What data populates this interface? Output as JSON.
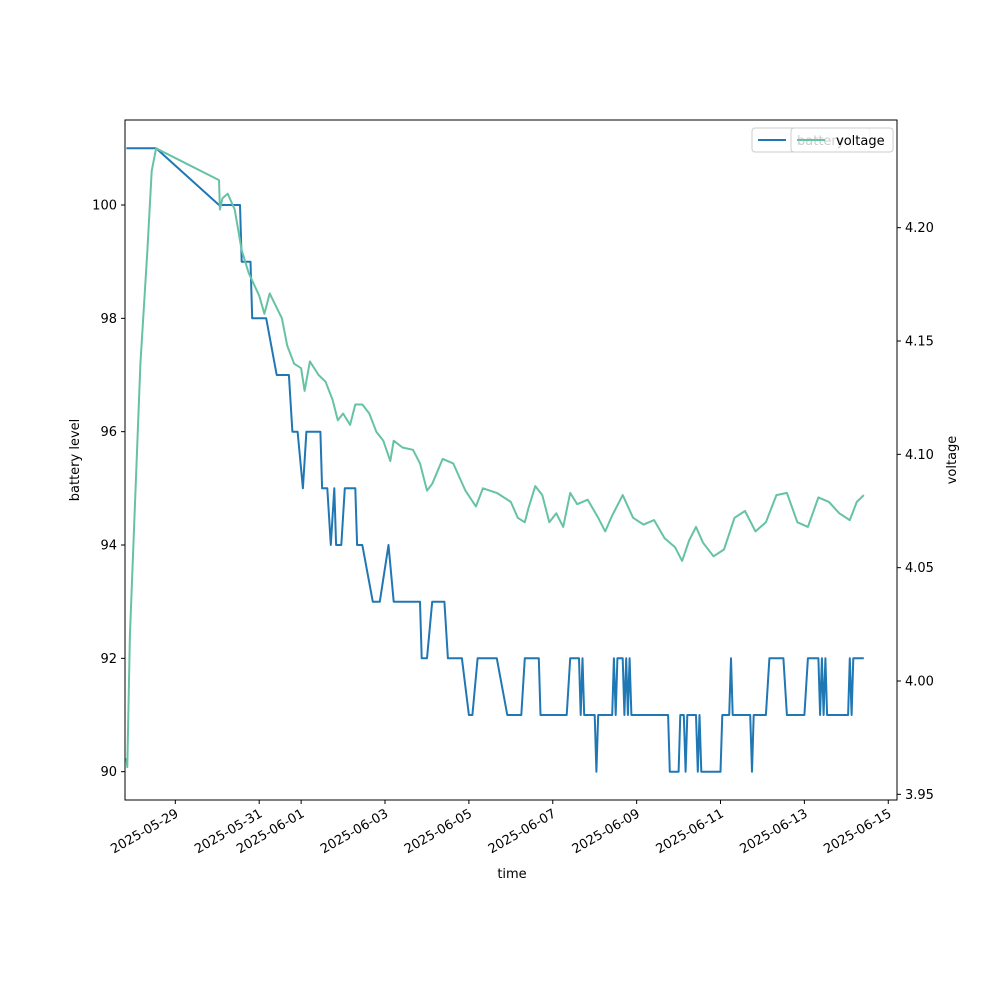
{
  "chart_data": {
    "type": "line",
    "xlabel": "time",
    "ylabel_left": "battery level",
    "ylabel_right": "voltage",
    "x_range": [
      "2025-05-27T19:12",
      "2025-06-15T05:00"
    ],
    "ylim_left": [
      89.5,
      101.5
    ],
    "ylim_right": [
      3.9475,
      4.2475
    ],
    "x_ticks": [
      "2025-05-29",
      "2025-05-31",
      "2025-06-01",
      "2025-06-03",
      "2025-06-05",
      "2025-06-07",
      "2025-06-09",
      "2025-06-11",
      "2025-06-13",
      "2025-06-15"
    ],
    "y_ticks_left": [
      "90",
      "92",
      "94",
      "96",
      "98",
      "100"
    ],
    "y_ticks_right": [
      "3.95",
      "4.00",
      "4.05",
      "4.10",
      "4.15",
      "4.20"
    ],
    "legend": {
      "placement": "top-right",
      "entries": [
        "battery",
        "voltage"
      ]
    },
    "colors": {
      "battery": "#1f77b4",
      "voltage": "#66c2a5"
    },
    "series": [
      {
        "name": "battery",
        "axis": "left",
        "points": [
          [
            "2025-05-27T20:00",
            101
          ],
          [
            "2025-05-28T13:00",
            101
          ],
          [
            "2025-05-30T01:00",
            100
          ],
          [
            "2025-05-30T13:00",
            100
          ],
          [
            "2025-05-30T14:00",
            99
          ],
          [
            "2025-05-30T19:00",
            99
          ],
          [
            "2025-05-30T20:00",
            98
          ],
          [
            "2025-05-31T04:00",
            98
          ],
          [
            "2025-05-31T10:00",
            97
          ],
          [
            "2025-05-31T17:00",
            97
          ],
          [
            "2025-05-31T19:00",
            96
          ],
          [
            "2025-05-31T22:00",
            96
          ],
          [
            "2025-06-01T01:00",
            95
          ],
          [
            "2025-06-01T03:00",
            96
          ],
          [
            "2025-06-01T11:00",
            96
          ],
          [
            "2025-06-01T12:00",
            95
          ],
          [
            "2025-06-01T15:00",
            95
          ],
          [
            "2025-06-01T17:00",
            94
          ],
          [
            "2025-06-01T19:00",
            95
          ],
          [
            "2025-06-01T20:00",
            94
          ],
          [
            "2025-06-01T23:00",
            94
          ],
          [
            "2025-06-02T01:00",
            95
          ],
          [
            "2025-06-02T07:00",
            95
          ],
          [
            "2025-06-02T08:00",
            94
          ],
          [
            "2025-06-02T11:00",
            94
          ],
          [
            "2025-06-02T17:00",
            93
          ],
          [
            "2025-06-02T21:00",
            93
          ],
          [
            "2025-06-03T02:00",
            94
          ],
          [
            "2025-06-03T05:00",
            93
          ],
          [
            "2025-06-03T20:00",
            93
          ],
          [
            "2025-06-03T21:00",
            92
          ],
          [
            "2025-06-04T00:00",
            92
          ],
          [
            "2025-06-04T03:00",
            93
          ],
          [
            "2025-06-04T10:00",
            93
          ],
          [
            "2025-06-04T12:00",
            92
          ],
          [
            "2025-06-04T20:00",
            92
          ],
          [
            "2025-06-05T00:00",
            91
          ],
          [
            "2025-06-05T02:00",
            91
          ],
          [
            "2025-06-05T05:00",
            92
          ],
          [
            "2025-06-05T16:00",
            92
          ],
          [
            "2025-06-05T22:00",
            91
          ],
          [
            "2025-06-06T06:00",
            91
          ],
          [
            "2025-06-06T08:00",
            92
          ],
          [
            "2025-06-06T16:00",
            92
          ],
          [
            "2025-06-06T17:00",
            91
          ],
          [
            "2025-06-07T08:00",
            91
          ],
          [
            "2025-06-07T10:00",
            92
          ],
          [
            "2025-06-07T15:00",
            92
          ],
          [
            "2025-06-07T16:00",
            91
          ],
          [
            "2025-06-07T17:00",
            92
          ],
          [
            "2025-06-07T18:00",
            91
          ],
          [
            "2025-06-08T00:00",
            91
          ],
          [
            "2025-06-08T01:00",
            90
          ],
          [
            "2025-06-08T02:00",
            91
          ],
          [
            "2025-06-08T10:00",
            91
          ],
          [
            "2025-06-08T11:00",
            92
          ],
          [
            "2025-06-08T12:00",
            91
          ],
          [
            "2025-06-08T13:00",
            92
          ],
          [
            "2025-06-08T16:00",
            92
          ],
          [
            "2025-06-08T17:00",
            91
          ],
          [
            "2025-06-08T18:00",
            92
          ],
          [
            "2025-06-08T19:00",
            91
          ],
          [
            "2025-06-08T20:00",
            92
          ],
          [
            "2025-06-08T21:00",
            91
          ],
          [
            "2025-06-09T18:00",
            91
          ],
          [
            "2025-06-09T19:00",
            90
          ],
          [
            "2025-06-10T00:00",
            90
          ],
          [
            "2025-06-10T01:00",
            91
          ],
          [
            "2025-06-10T03:00",
            91
          ],
          [
            "2025-06-10T04:00",
            90
          ],
          [
            "2025-06-10T05:00",
            91
          ],
          [
            "2025-06-10T10:00",
            91
          ],
          [
            "2025-06-10T11:00",
            90
          ],
          [
            "2025-06-10T12:00",
            91
          ],
          [
            "2025-06-10T13:00",
            90
          ],
          [
            "2025-06-11T00:00",
            90
          ],
          [
            "2025-06-11T01:00",
            91
          ],
          [
            "2025-06-11T05:00",
            91
          ],
          [
            "2025-06-11T06:00",
            92
          ],
          [
            "2025-06-11T07:00",
            91
          ],
          [
            "2025-06-11T17:00",
            91
          ],
          [
            "2025-06-11T18:00",
            90
          ],
          [
            "2025-06-11T19:00",
            91
          ],
          [
            "2025-06-12T02:00",
            91
          ],
          [
            "2025-06-12T04:00",
            92
          ],
          [
            "2025-06-12T12:00",
            92
          ],
          [
            "2025-06-12T14:00",
            91
          ],
          [
            "2025-06-13T00:00",
            91
          ],
          [
            "2025-06-13T02:00",
            92
          ],
          [
            "2025-06-13T08:00",
            92
          ],
          [
            "2025-06-13T09:00",
            91
          ],
          [
            "2025-06-13T10:00",
            92
          ],
          [
            "2025-06-13T11:00",
            91
          ],
          [
            "2025-06-13T12:00",
            92
          ],
          [
            "2025-06-13T13:00",
            91
          ],
          [
            "2025-06-14T01:00",
            91
          ],
          [
            "2025-06-14T02:00",
            92
          ],
          [
            "2025-06-14T03:00",
            91
          ],
          [
            "2025-06-14T04:00",
            92
          ],
          [
            "2025-06-14T10:00",
            92
          ]
        ]
      },
      {
        "name": "voltage",
        "axis": "right",
        "points": [
          [
            "2025-05-27T20:00",
            3.966
          ],
          [
            "2025-05-27T20:30",
            3.962
          ],
          [
            "2025-05-27T22:00",
            4.02
          ],
          [
            "2025-05-28T00:00",
            4.06
          ],
          [
            "2025-05-28T04:00",
            4.14
          ],
          [
            "2025-05-28T08:00",
            4.19
          ],
          [
            "2025-05-28T10:30",
            4.225
          ],
          [
            "2025-05-28T13:00",
            4.235
          ],
          [
            "2025-05-30T01:00",
            4.221
          ],
          [
            "2025-05-30T01:30",
            4.208
          ],
          [
            "2025-05-30T03:00",
            4.213
          ],
          [
            "2025-05-30T06:00",
            4.215
          ],
          [
            "2025-05-30T10:00",
            4.208
          ],
          [
            "2025-05-30T14:00",
            4.19
          ],
          [
            "2025-05-30T18:00",
            4.18
          ],
          [
            "2025-05-31T00:00",
            4.17
          ],
          [
            "2025-05-31T03:00",
            4.162
          ],
          [
            "2025-05-31T06:00",
            4.171
          ],
          [
            "2025-05-31T13:00",
            4.16
          ],
          [
            "2025-05-31T16:00",
            4.148
          ],
          [
            "2025-05-31T20:00",
            4.14
          ],
          [
            "2025-06-01T00:00",
            4.138
          ],
          [
            "2025-06-01T02:00",
            4.128
          ],
          [
            "2025-06-01T05:00",
            4.141
          ],
          [
            "2025-06-01T10:00",
            4.135
          ],
          [
            "2025-06-01T14:00",
            4.132
          ],
          [
            "2025-06-01T18:00",
            4.124
          ],
          [
            "2025-06-01T21:00",
            4.115
          ],
          [
            "2025-06-02T00:00",
            4.118
          ],
          [
            "2025-06-02T04:00",
            4.113
          ],
          [
            "2025-06-02T07:00",
            4.122
          ],
          [
            "2025-06-02T11:00",
            4.122
          ],
          [
            "2025-06-02T15:00",
            4.118
          ],
          [
            "2025-06-02T19:00",
            4.11
          ],
          [
            "2025-06-02T23:00",
            4.106
          ],
          [
            "2025-06-03T03:00",
            4.097
          ],
          [
            "2025-06-03T05:00",
            4.106
          ],
          [
            "2025-06-03T10:00",
            4.103
          ],
          [
            "2025-06-03T16:00",
            4.102
          ],
          [
            "2025-06-03T20:00",
            4.096
          ],
          [
            "2025-06-04T00:00",
            4.084
          ],
          [
            "2025-06-04T03:00",
            4.087
          ],
          [
            "2025-06-04T09:00",
            4.098
          ],
          [
            "2025-06-04T15:00",
            4.096
          ],
          [
            "2025-06-04T22:00",
            4.084
          ],
          [
            "2025-06-05T04:00",
            4.077
          ],
          [
            "2025-06-05T08:00",
            4.085
          ],
          [
            "2025-06-05T16:00",
            4.083
          ],
          [
            "2025-06-06T00:00",
            4.079
          ],
          [
            "2025-06-06T04:00",
            4.072
          ],
          [
            "2025-06-06T08:00",
            4.07
          ],
          [
            "2025-06-06T10:00",
            4.076
          ],
          [
            "2025-06-06T14:00",
            4.086
          ],
          [
            "2025-06-06T18:00",
            4.082
          ],
          [
            "2025-06-06T22:00",
            4.07
          ],
          [
            "2025-06-07T02:00",
            4.074
          ],
          [
            "2025-06-07T06:00",
            4.068
          ],
          [
            "2025-06-07T10:00",
            4.083
          ],
          [
            "2025-06-07T14:00",
            4.078
          ],
          [
            "2025-06-07T20:00",
            4.08
          ],
          [
            "2025-06-08T02:00",
            4.072
          ],
          [
            "2025-06-08T06:00",
            4.066
          ],
          [
            "2025-06-08T10:00",
            4.073
          ],
          [
            "2025-06-08T16:00",
            4.082
          ],
          [
            "2025-06-08T22:00",
            4.072
          ],
          [
            "2025-06-09T04:00",
            4.069
          ],
          [
            "2025-06-09T10:00",
            4.071
          ],
          [
            "2025-06-09T16:00",
            4.063
          ],
          [
            "2025-06-09T22:00",
            4.059
          ],
          [
            "2025-06-10T02:00",
            4.053
          ],
          [
            "2025-06-10T06:00",
            4.062
          ],
          [
            "2025-06-10T10:00",
            4.068
          ],
          [
            "2025-06-10T14:00",
            4.061
          ],
          [
            "2025-06-10T20:00",
            4.055
          ],
          [
            "2025-06-11T02:00",
            4.058
          ],
          [
            "2025-06-11T08:00",
            4.072
          ],
          [
            "2025-06-11T14:00",
            4.075
          ],
          [
            "2025-06-11T20:00",
            4.066
          ],
          [
            "2025-06-12T02:00",
            4.07
          ],
          [
            "2025-06-12T08:00",
            4.082
          ],
          [
            "2025-06-12T14:00",
            4.083
          ],
          [
            "2025-06-12T20:00",
            4.07
          ],
          [
            "2025-06-13T02:00",
            4.068
          ],
          [
            "2025-06-13T08:00",
            4.081
          ],
          [
            "2025-06-13T14:00",
            4.079
          ],
          [
            "2025-06-13T20:00",
            4.074
          ],
          [
            "2025-06-14T02:00",
            4.071
          ],
          [
            "2025-06-14T06:00",
            4.079
          ],
          [
            "2025-06-14T10:00",
            4.082
          ]
        ]
      }
    ]
  }
}
